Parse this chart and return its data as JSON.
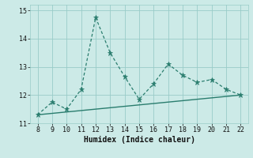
{
  "xlabel": "Humidex (Indice chaleur)",
  "x": [
    8,
    9,
    10,
    11,
    12,
    13,
    14,
    15,
    16,
    17,
    18,
    19,
    20,
    21,
    22
  ],
  "y_line": [
    11.3,
    11.75,
    11.5,
    12.2,
    14.75,
    13.5,
    12.65,
    11.85,
    12.4,
    13.1,
    12.7,
    12.45,
    12.55,
    12.2,
    12.0
  ],
  "y_trend_start": 11.3,
  "y_trend_end": 12.0,
  "x_trend_start": 8,
  "x_trend_end": 22,
  "bg_color": "#cceae7",
  "line_color": "#2a7d6e",
  "grid_color": "#99ccc8",
  "ylim": [
    11.0,
    15.2
  ],
  "xlim": [
    7.5,
    22.5
  ],
  "yticks": [
    11,
    12,
    13,
    14,
    15
  ],
  "xticks": [
    8,
    9,
    10,
    11,
    12,
    13,
    14,
    15,
    16,
    17,
    18,
    19,
    20,
    21,
    22
  ],
  "tick_fontsize": 6,
  "xlabel_fontsize": 7
}
